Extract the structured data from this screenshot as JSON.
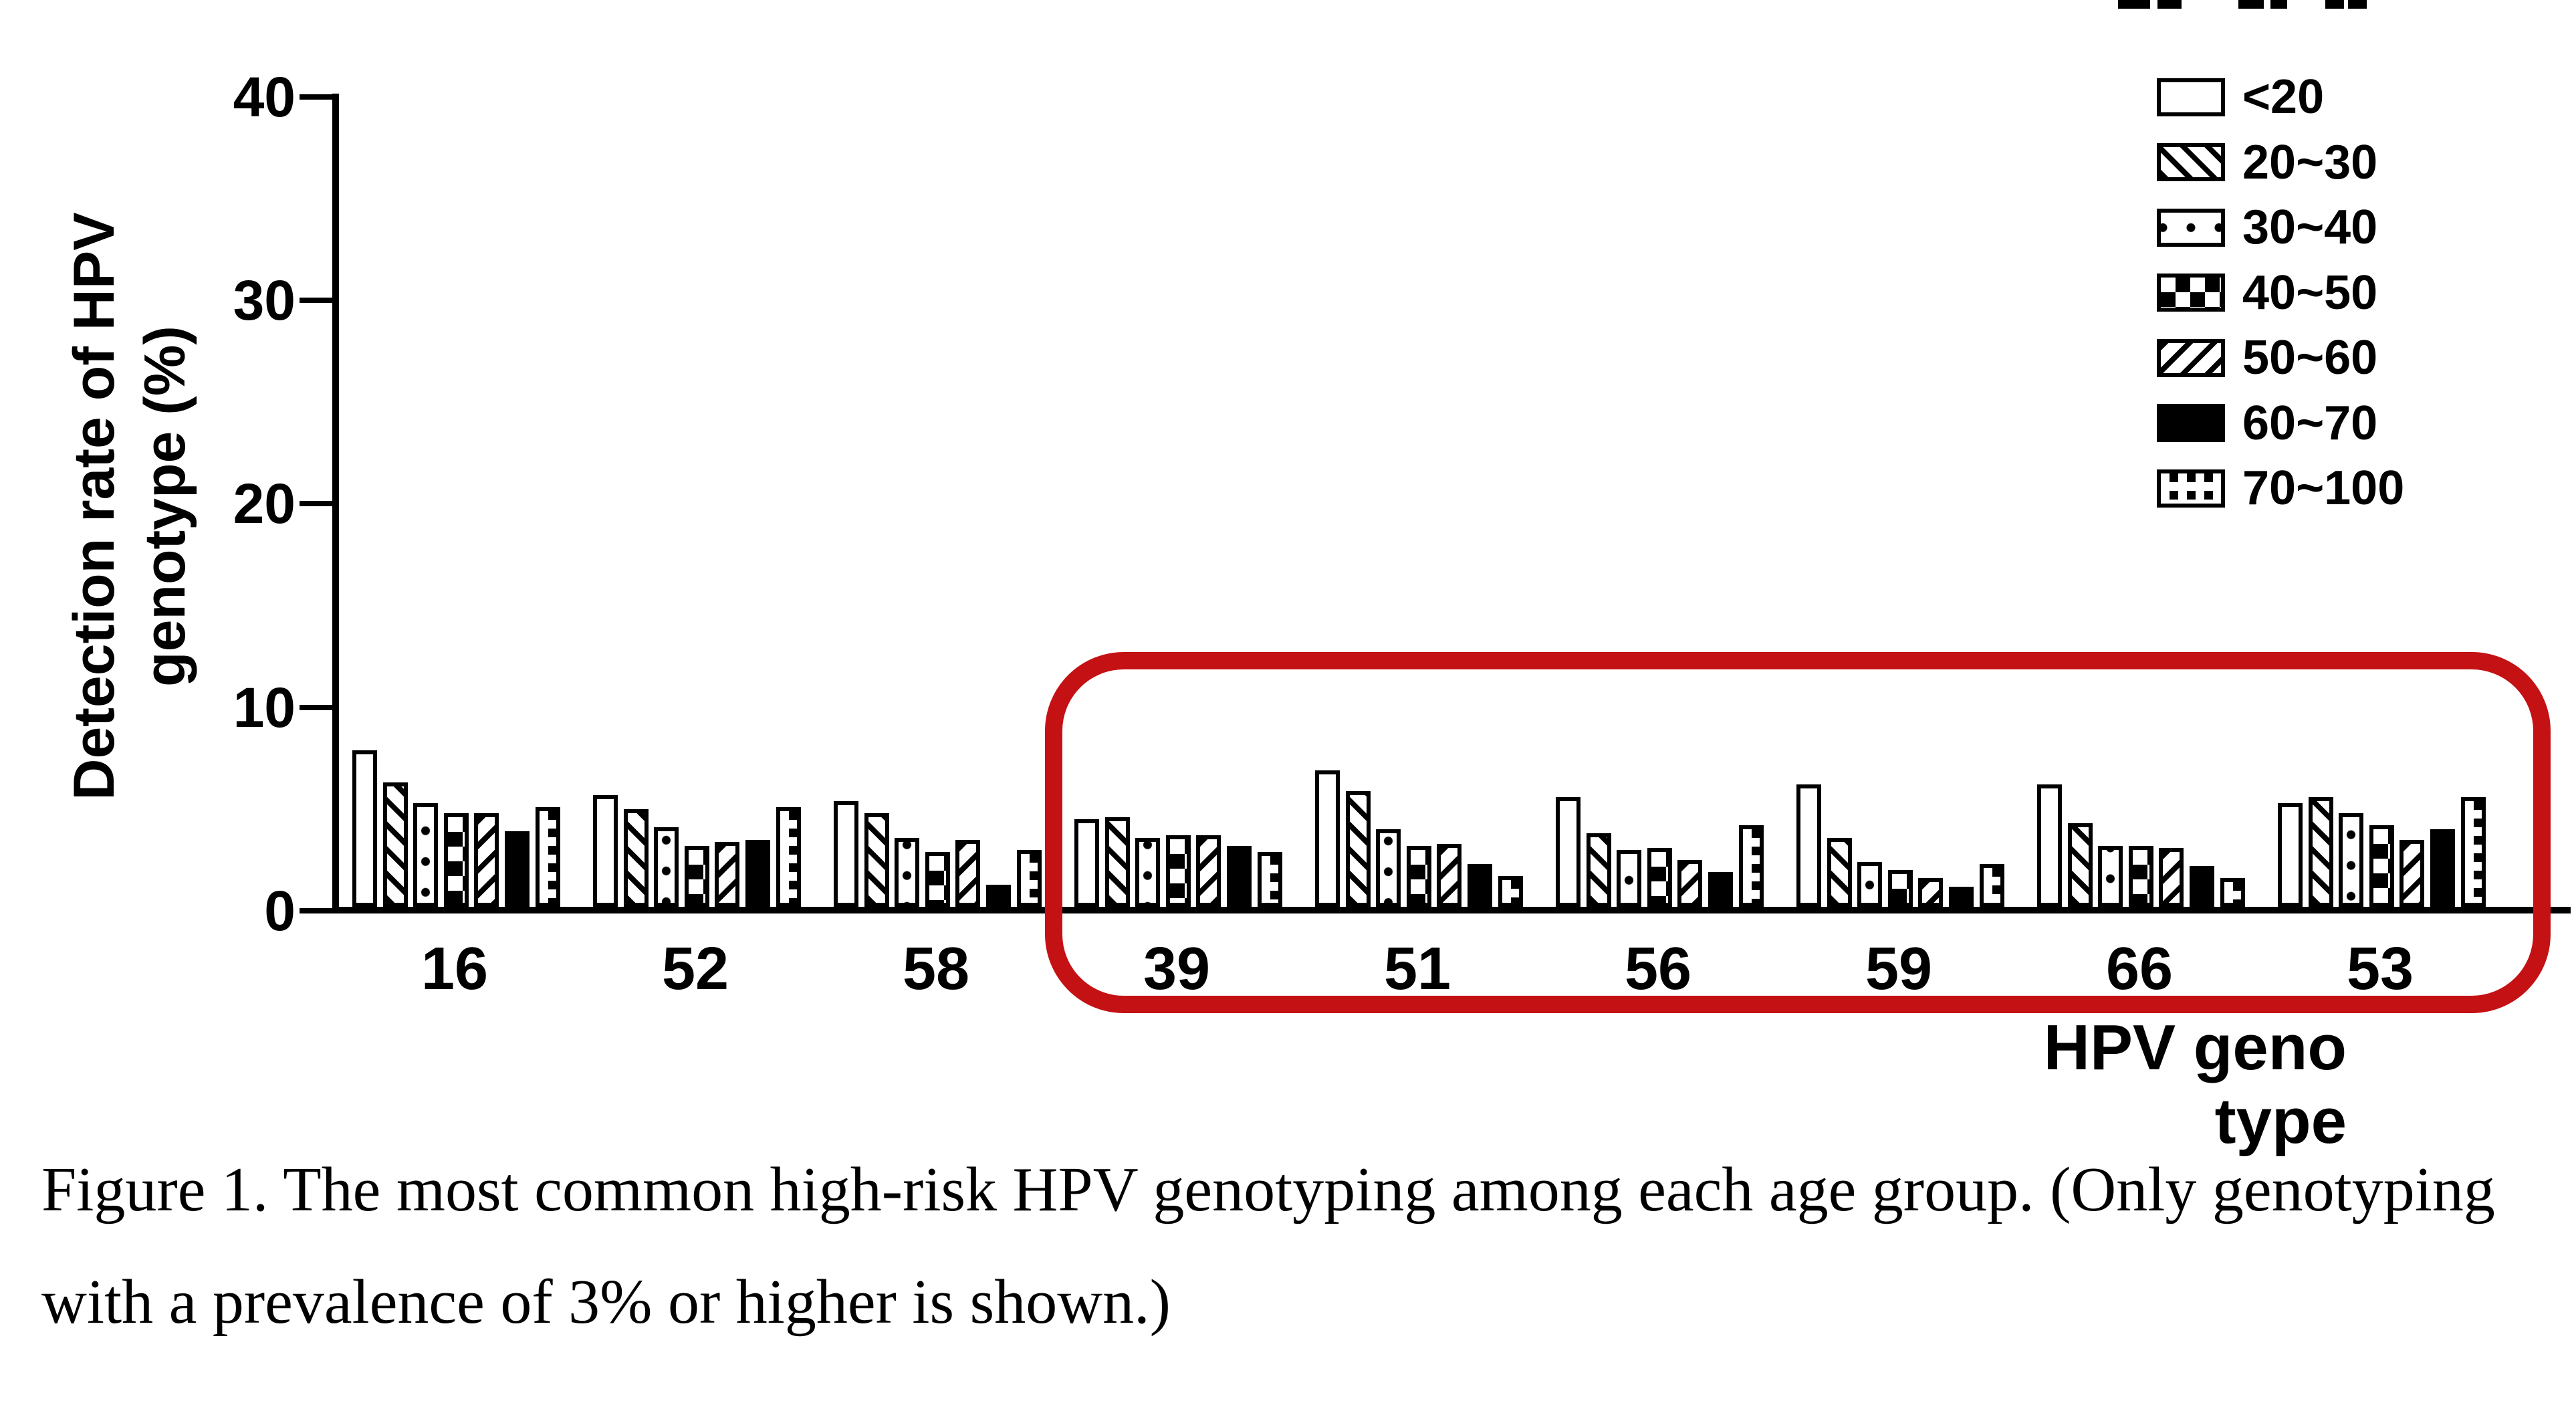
{
  "figure": {
    "y_axis_title_line1": "Detection rate of HPV",
    "y_axis_title_line2": "genotype (%)",
    "x_axis_title": "HPV geno type"
  },
  "chart_data": {
    "type": "bar",
    "title": "",
    "xlabel": "HPV geno type",
    "ylabel": "Detection rate of HPV genotype (%)",
    "ylim": [
      0,
      40
    ],
    "yticks": [
      40,
      30,
      20,
      10,
      0
    ],
    "grid": false,
    "legend_position": "top-right",
    "categories": [
      "16",
      "52",
      "58",
      "39",
      "51",
      "56",
      "59",
      "66",
      "53"
    ],
    "series": [
      {
        "name": "<20",
        "pattern": "plain",
        "values": [
          7.7,
          5.5,
          5.2,
          4.3,
          6.7,
          5.4,
          6.0,
          6.0,
          5.1
        ]
      },
      {
        "name": "20~30",
        "pattern": "hatch-back",
        "values": [
          6.1,
          4.8,
          4.6,
          4.4,
          5.7,
          3.6,
          3.4,
          4.1,
          5.4
        ]
      },
      {
        "name": "30~40",
        "pattern": "dots",
        "values": [
          5.1,
          3.9,
          3.4,
          3.4,
          3.8,
          2.8,
          2.2,
          3.0,
          4.6
        ]
      },
      {
        "name": "40~50",
        "pattern": "checker",
        "values": [
          4.6,
          3.0,
          2.7,
          3.5,
          3.0,
          2.9,
          1.8,
          3.0,
          4.0
        ]
      },
      {
        "name": "50~60",
        "pattern": "hatch-fwd",
        "values": [
          4.6,
          3.2,
          3.3,
          3.5,
          3.1,
          2.3,
          1.4,
          2.9,
          3.3
        ]
      },
      {
        "name": "60~70",
        "pattern": "solid",
        "values": [
          3.7,
          3.3,
          1.1,
          3.0,
          2.1,
          1.7,
          1.0,
          2.0,
          3.8
        ]
      },
      {
        "name": "70~100",
        "pattern": "squares",
        "values": [
          4.9,
          4.9,
          2.8,
          2.7,
          1.5,
          4.0,
          2.1,
          1.4,
          5.4
        ]
      }
    ],
    "annotations": [
      {
        "type": "highlight-box",
        "color": "#c41114",
        "from_category": "39",
        "to_category": "53",
        "meaning": "red rounded rectangle around genotype groups 39 through 53"
      }
    ]
  },
  "caption": {
    "line1": "Figure 1. The most common high-risk HPV genotyping among each age group. (Only genotyping",
    "line2": "with a prevalence of 3% or higher is shown.)"
  },
  "artifacts": {
    "top_edge_fragments": [
      {
        "x": 3168,
        "w": 48
      },
      {
        "x": 3227,
        "w": 36
      },
      {
        "x": 3348,
        "w": 38
      },
      {
        "x": 3396,
        "w": 25
      },
      {
        "x": 3478,
        "w": 28
      },
      {
        "x": 3512,
        "w": 28
      }
    ]
  }
}
